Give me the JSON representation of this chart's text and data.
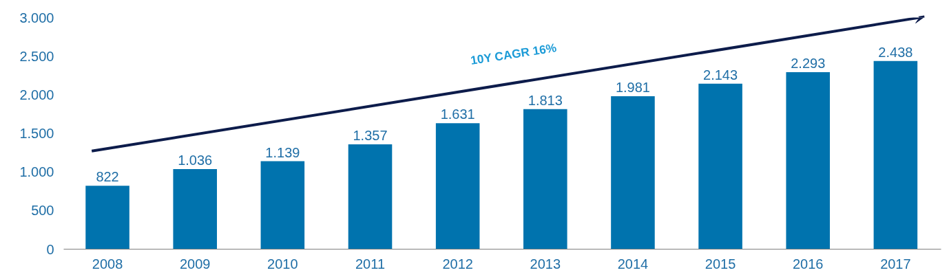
{
  "chart_data": {
    "type": "bar",
    "categories": [
      "2008",
      "2009",
      "2010",
      "2011",
      "2012",
      "2013",
      "2014",
      "2015",
      "2016",
      "2017"
    ],
    "values": [
      822,
      1036,
      1139,
      1357,
      1631,
      1813,
      1981,
      2143,
      2293,
      2438
    ],
    "value_labels": [
      "822",
      "1.036",
      "1.139",
      "1.357",
      "1.631",
      "1.813",
      "1.981",
      "2.143",
      "2.293",
      "2.438"
    ],
    "color": "#0073ae",
    "ylim": [
      0,
      3000
    ],
    "yticks": [
      {
        "value": 0,
        "label": "0"
      },
      {
        "value": 500,
        "label": "500"
      },
      {
        "value": 1000,
        "label": "1.000"
      },
      {
        "value": 1500,
        "label": "1.500"
      },
      {
        "value": 2000,
        "label": "2.000"
      },
      {
        "value": 2500,
        "label": "2.500"
      },
      {
        "value": 3000,
        "label": "3.000"
      }
    ],
    "annotations": [
      "10Y CAGR 16%"
    ],
    "grid": false
  }
}
